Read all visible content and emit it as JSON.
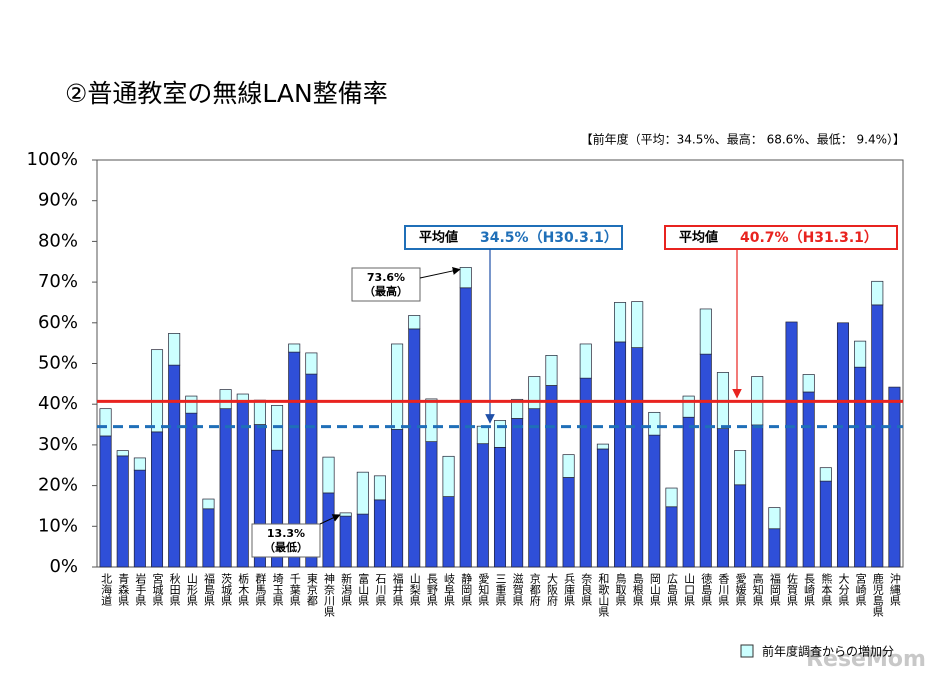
{
  "chart_data": {
    "type": "stacked_bar",
    "title": "②普通教室の無線LAN整備率",
    "subtitle": "【前年度（平均：34.5%、最高： 68.6%、最低： 9.4%）】",
    "categories": [
      "北海道",
      "青森県",
      "岩手県",
      "宮城県",
      "秋田県",
      "山形県",
      "福島県",
      "茨城県",
      "栃木県",
      "群馬県",
      "埼玉県",
      "千葉県",
      "東京都",
      "神奈川県",
      "新潟県",
      "富山県",
      "石川県",
      "福井県",
      "山梨県",
      "長野県",
      "岐阜県",
      "静岡県",
      "愛知県",
      "三重県",
      "滋賀県",
      "京都府",
      "大阪府",
      "兵庫県",
      "奈良県",
      "和歌山県",
      "鳥取県",
      "島根県",
      "岡山県",
      "広島県",
      "山口県",
      "徳島県",
      "香川県",
      "愛媛県",
      "高知県",
      "福岡県",
      "佐賀県",
      "長崎県",
      "熊本県",
      "大分県",
      "宮崎県",
      "鹿児島県",
      "沖縄県"
    ],
    "series": [
      {
        "color": "#2f4fd8",
        "values": [
          32.2,
          27.3,
          23.8,
          33.2,
          49.6,
          37.8,
          14.3,
          38.9,
          40.7,
          35.0,
          28.7,
          52.8,
          47.4,
          18.2,
          12.5,
          13.0,
          16.5,
          33.8,
          58.5,
          30.8,
          17.3,
          68.6,
          30.3,
          29.4,
          36.5,
          38.9,
          44.6,
          22.0,
          46.4,
          29.0,
          55.3,
          53.9,
          32.4,
          14.8,
          36.8,
          52.3,
          34.0,
          20.2,
          34.9,
          9.4,
          60.2,
          43.0,
          21.1,
          60.0,
          49.1,
          64.4,
          44.2
        ]
      },
      {
        "name": "前年度調査からの増加分",
        "color": "#ccffff",
        "values": [
          6.7,
          1.3,
          3.0,
          20.2,
          7.8,
          4.2,
          2.4,
          4.7,
          1.8,
          6.0,
          11.0,
          2.0,
          5.2,
          8.8,
          0.8,
          10.3,
          5.9,
          21.0,
          3.3,
          10.5,
          9.9,
          5.0,
          4.3,
          6.6,
          4.7,
          7.9,
          7.4,
          5.6,
          8.4,
          1.2,
          9.7,
          11.3,
          5.6,
          4.6,
          5.2,
          11.1,
          13.8,
          8.4,
          11.9,
          5.2,
          0,
          4.3,
          3.3,
          0,
          6.4,
          5.8,
          0
        ]
      }
    ],
    "ylim": [
      0,
      100
    ],
    "yticks": [
      {
        "value": 0,
        "label": "0%"
      },
      {
        "value": 10,
        "label": "10%"
      },
      {
        "value": 20,
        "label": "20%"
      },
      {
        "value": 30,
        "label": "30%"
      },
      {
        "value": 40,
        "label": "40%"
      },
      {
        "value": 50,
        "label": "50%"
      },
      {
        "value": 60,
        "label": "60%"
      },
      {
        "value": 70,
        "label": "70%"
      },
      {
        "value": 80,
        "label": "80%"
      },
      {
        "value": 90,
        "label": "90%"
      },
      {
        "value": 100,
        "label": "100%"
      }
    ],
    "reference_lines": [
      {
        "value": 34.5,
        "label": "平均値",
        "value_label": "34.5%（H30.3.1）",
        "color": "#1f6fb8",
        "dashed": true
      },
      {
        "value": 40.7,
        "label": "平均値",
        "value_label": "40.7%（H31.3.1）",
        "color": "#e8231f",
        "dashed": false
      }
    ],
    "annotations": [
      {
        "category": "静岡県",
        "value": 73.6,
        "label": "73.6%",
        "note": "（最高）"
      },
      {
        "category": "新潟県",
        "value": 13.3,
        "label": "13.3%",
        "note": "（最低）"
      }
    ],
    "watermark": "ReseMom"
  }
}
